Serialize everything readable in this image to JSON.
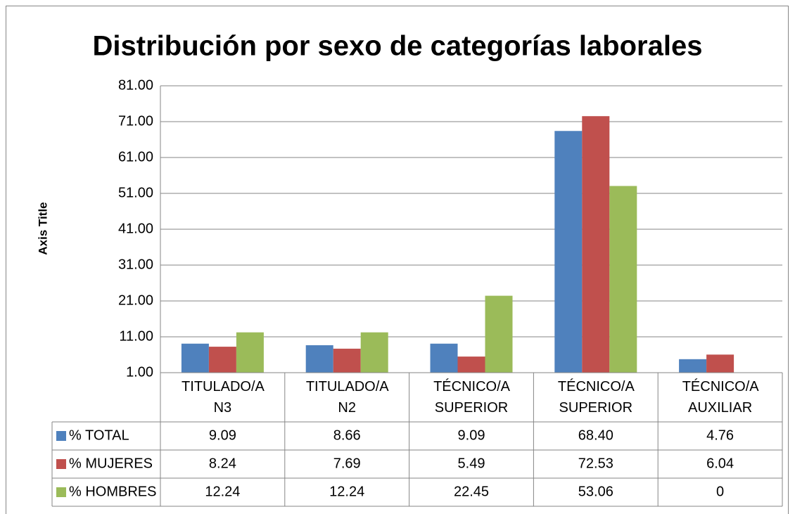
{
  "chart_data": {
    "type": "bar",
    "title": "Distribución por sexo de categorías laborales",
    "y_axis_label": "Axis Title",
    "categories": [
      "TITULADO/A N3",
      "TITULADO/A N2",
      "TÉCNICO/A SUPERIOR",
      "TÉCNICO/A SUPERIOR",
      "TÉCNICO/A AUXILIAR"
    ],
    "series": [
      {
        "name": "% TOTAL",
        "color": "#4f81bd",
        "values": [
          9.09,
          8.66,
          9.09,
          68.4,
          4.76
        ],
        "value_labels": [
          "9.09",
          "8.66",
          "9.09",
          "68.40",
          "4.76"
        ]
      },
      {
        "name": "% MUJERES",
        "color": "#c0504d",
        "values": [
          8.24,
          7.69,
          5.49,
          72.53,
          6.04
        ]
      },
      {
        "name": "% HOMBRES",
        "color": "#9bbb59",
        "values": [
          12.24,
          12.24,
          22.45,
          53.06,
          0
        ]
      }
    ],
    "ylim": [
      1,
      81
    ],
    "yticks": [
      {
        "value": 1,
        "label": "1.00"
      },
      {
        "value": 11,
        "label": "11.00"
      },
      {
        "value": 21,
        "label": "21.00"
      },
      {
        "value": 31,
        "label": "31.00"
      },
      {
        "value": 41,
        "label": "41.00"
      },
      {
        "value": 51,
        "label": "51.00"
      },
      {
        "value": 61,
        "label": "61.00"
      },
      {
        "value": 71,
        "label": "71.00"
      },
      {
        "value": 81,
        "label": "81.00"
      }
    ],
    "grid": true
  }
}
